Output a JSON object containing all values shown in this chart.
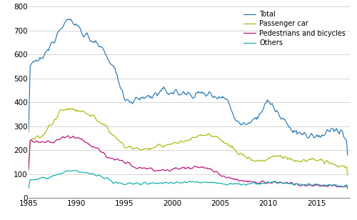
{
  "colors": {
    "total": "#1a6faf",
    "passenger": "#a8b400",
    "pedestrians": "#b5006e",
    "others": "#00aaaa"
  },
  "legend": [
    "Total",
    "Passenger car",
    "Pedestrians and bicycles",
    "Others"
  ],
  "ylim": [
    0,
    800
  ],
  "yticks": [
    0,
    100,
    200,
    300,
    400,
    500,
    600,
    700,
    800
  ],
  "xlim_start": 1985.0,
  "xlim_end": 2018.5,
  "xticks": [
    1985,
    1990,
    1995,
    2000,
    2005,
    2010,
    2015
  ],
  "grid_color": "#d0d0d0",
  "background_color": "#ffffff",
  "linewidth": 0.8
}
